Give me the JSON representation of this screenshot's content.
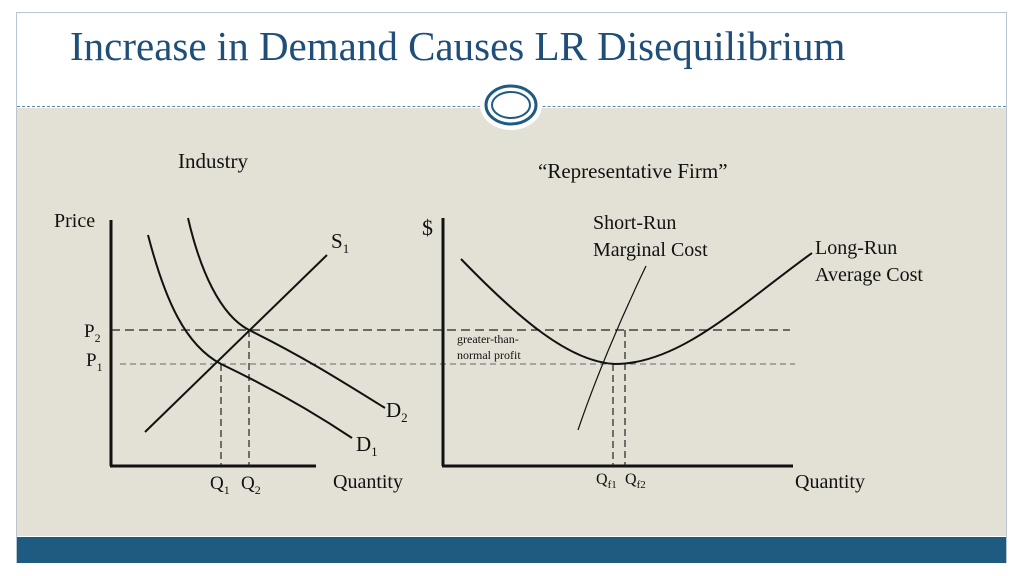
{
  "title": "Increase in Demand Causes LR Disequilibrium",
  "colors": {
    "title": "#1f4e78",
    "content_bg": "#e3e0d5",
    "bottom_bar": "#1f5a80",
    "ornament": "#1f5a80"
  },
  "ornament_icon": "double-oval-ornament",
  "industry": {
    "heading": "Industry",
    "y_axis_label": "Price",
    "x_axis_label": "Quantity",
    "supply_label": "S",
    "supply_sub": "1",
    "demand1_label": "D",
    "demand1_sub": "1",
    "demand2_label": "D",
    "demand2_sub": "2",
    "p1": "P",
    "p1_sub": "1",
    "p2": "P",
    "p2_sub": "2",
    "q1": "Q",
    "q1_sub": "1",
    "q2": "Q",
    "q2_sub": "2"
  },
  "firm": {
    "heading": "“Representative Firm”",
    "y_axis_label": "$",
    "x_axis_label": "Quantity",
    "srmc_line1": "Short-Run",
    "srmc_line2": "Marginal Cost",
    "lrac_line1": "Long-Run",
    "lrac_line2": "Average Cost",
    "profit_line1": "greater-than-",
    "profit_line2": "normal profit",
    "qf1": "Q",
    "qf1_sub": "f1",
    "qf2": "Q",
    "qf2_sub": "f2"
  }
}
